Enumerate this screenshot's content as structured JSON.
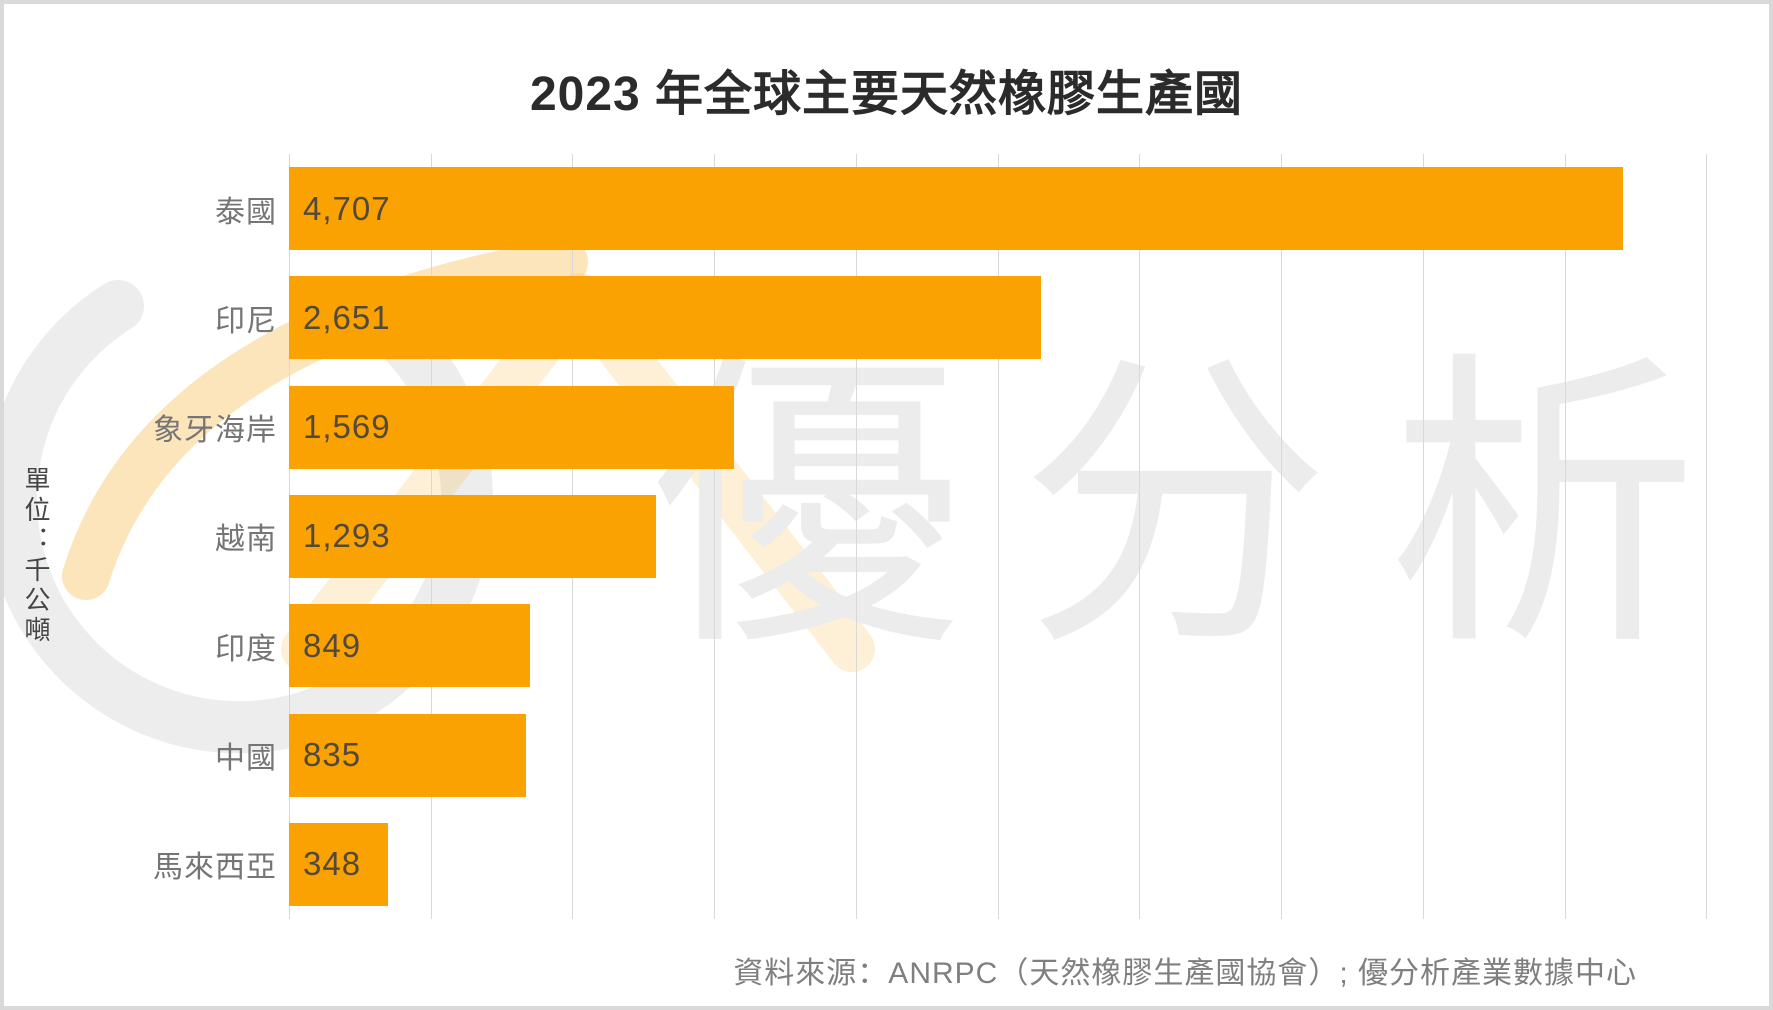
{
  "title": "2023 年全球主要天然橡膠生產國",
  "unit_label": "單位：千公噸",
  "source": "資料來源：ANRPC（天然橡膠生產國協會）; 優分析產業數據中心",
  "watermark": {
    "text": "優分析"
  },
  "colors": {
    "bar": "#F9A201",
    "gridline": "#D8D8D8",
    "frame": "#D9D9D9",
    "title_text": "#2B2B2B",
    "category_text": "#757575",
    "value_text": "#53493B",
    "unit_text": "#454545",
    "source_text": "#7F7F7F",
    "watermark_gray": "#ECECEC",
    "watermark_orange": "rgba(250,170,30,0.3)"
  },
  "chart_data": {
    "type": "bar",
    "orientation": "horizontal",
    "title": "2023 年全球主要天然橡膠生產國",
    "ylabel": "單位：千公噸",
    "categories": [
      "泰國",
      "印尼",
      "象牙海岸",
      "越南",
      "印度",
      "中國",
      "馬來西亞"
    ],
    "values": [
      4707,
      2651,
      1569,
      1293,
      849,
      835,
      348
    ],
    "value_labels": [
      "4,707",
      "2,651",
      "1,569",
      "1,293",
      "849",
      "835",
      "348"
    ],
    "xlim": [
      0,
      5150
    ],
    "gridline_step": 500,
    "grid": "vertical-only",
    "tick_labels_shown": false,
    "legend": "none"
  }
}
